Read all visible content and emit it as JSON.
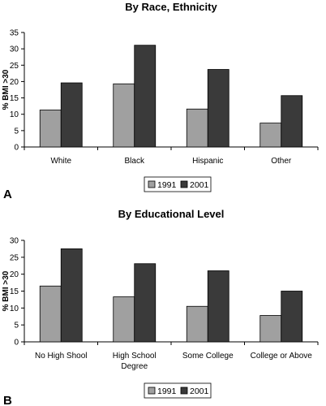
{
  "chart_data": [
    {
      "type": "bar",
      "panel_label": "A",
      "title": "By Race, Ethnicity",
      "ylabel": "% BMI >30",
      "xlabel": "",
      "ylim": [
        0,
        35
      ],
      "yticks": [
        0,
        5,
        10,
        15,
        20,
        25,
        30,
        35
      ],
      "grid": false,
      "legend_placement": "bottom",
      "categories": [
        [
          "White"
        ],
        [
          "Black"
        ],
        [
          "Hispanic"
        ],
        [
          "Other"
        ]
      ],
      "series": [
        {
          "name": "1991",
          "color": "#a0a0a0",
          "values": [
            11.3,
            19.3,
            11.6,
            7.3
          ]
        },
        {
          "name": "2001",
          "color": "#3a3a3a",
          "values": [
            19.6,
            31.1,
            23.7,
            15.7
          ]
        }
      ]
    },
    {
      "type": "bar",
      "panel_label": "B",
      "title": "By Educational Level",
      "ylabel": "% BMI >30",
      "xlabel": "",
      "ylim": [
        0,
        30
      ],
      "yticks": [
        0,
        5,
        10,
        15,
        20,
        25,
        30
      ],
      "grid": false,
      "legend_placement": "bottom",
      "categories": [
        [
          "No High Shool"
        ],
        [
          "High School",
          "Degree"
        ],
        [
          "Some College"
        ],
        [
          "College or Above"
        ]
      ],
      "series": [
        {
          "name": "1991",
          "color": "#a0a0a0",
          "values": [
            16.5,
            13.3,
            10.5,
            7.8
          ]
        },
        {
          "name": "2001",
          "color": "#3a3a3a",
          "values": [
            27.5,
            23.1,
            21.0,
            15.0
          ]
        }
      ]
    }
  ]
}
